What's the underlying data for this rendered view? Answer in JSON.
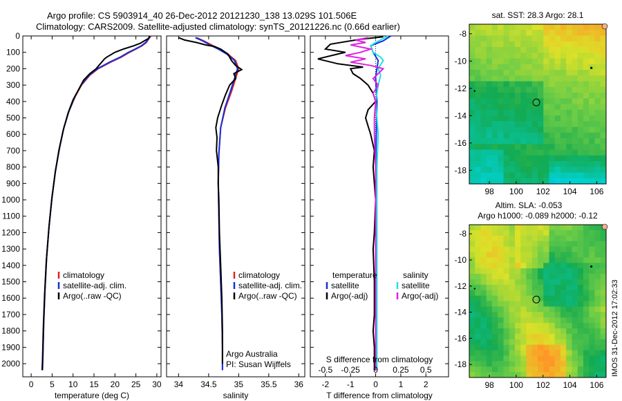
{
  "header": {
    "line1": "Argo profile: CS 5903914_40 26-Dec-2012 20121230_138 13.029S 101.506E",
    "line2": "Climatology: CARS2009. Satellite-adjusted climatology: synTS_20121226.nc (0.66d earlier)"
  },
  "side_stamp": "IMOS 31-Dec-2012 17:02:33",
  "colors": {
    "clim": "#e02020",
    "sat": "#1030e0",
    "argo": "#000000",
    "sal_sat": "#20e0e0",
    "sal_argo": "#e020e0"
  },
  "chart_data": [
    {
      "id": "temperature",
      "type": "line",
      "xlabel": "temperature (deg C)",
      "xlim": [
        -2,
        31
      ],
      "xticks": [
        0,
        5,
        10,
        15,
        20,
        25,
        30
      ],
      "ylim": [
        0,
        2080
      ],
      "yticks": [
        0,
        100,
        200,
        300,
        400,
        500,
        600,
        700,
        800,
        900,
        1000,
        1100,
        1200,
        1300,
        1400,
        1500,
        1600,
        1700,
        1800,
        1900,
        2000
      ],
      "legend": [
        "climatology",
        "satellite-adj. clim.",
        "Argo(..raw -QC)"
      ],
      "series": [
        {
          "name": "climatology",
          "color": "clim",
          "points": [
            [
              28.6,
              0
            ],
            [
              28,
              20
            ],
            [
              27.5,
              40
            ],
            [
              26.5,
              60
            ],
            [
              25,
              80
            ],
            [
              23.5,
              100
            ],
            [
              21.5,
              130
            ],
            [
              19,
              160
            ],
            [
              16,
              200
            ],
            [
              14,
              240
            ],
            [
              12,
              300
            ],
            [
              10.5,
              370
            ],
            [
              9,
              460
            ],
            [
              7.8,
              560
            ],
            [
              6.8,
              680
            ],
            [
              5.8,
              820
            ],
            [
              5,
              980
            ],
            [
              4.3,
              1150
            ],
            [
              3.7,
              1350
            ],
            [
              3.3,
              1550
            ],
            [
              3,
              1750
            ],
            [
              2.8,
              1950
            ],
            [
              2.7,
              2040
            ]
          ]
        },
        {
          "name": "satellite-adj. clim.",
          "color": "sat",
          "points": [
            [
              28.4,
              0
            ],
            [
              28,
              20
            ],
            [
              27.3,
              40
            ],
            [
              26.3,
              60
            ],
            [
              24.8,
              80
            ],
            [
              23.2,
              100
            ],
            [
              21.2,
              130
            ],
            [
              18.7,
              160
            ],
            [
              15.8,
              200
            ],
            [
              13.8,
              240
            ],
            [
              11.9,
              300
            ],
            [
              10.4,
              370
            ],
            [
              9,
              460
            ],
            [
              7.8,
              560
            ],
            [
              6.8,
              680
            ],
            [
              5.8,
              820
            ],
            [
              5,
              980
            ],
            [
              4.3,
              1150
            ],
            [
              3.7,
              1350
            ],
            [
              3.3,
              1550
            ],
            [
              3,
              1750
            ],
            [
              2.8,
              1950
            ],
            [
              2.7,
              2040
            ]
          ]
        },
        {
          "name": "Argo(..raw -QC)",
          "color": "argo",
          "points": [
            [
              28.3,
              0
            ],
            [
              28,
              15
            ],
            [
              27,
              30
            ],
            [
              26,
              45
            ],
            [
              24.5,
              60
            ],
            [
              22,
              80
            ],
            [
              20,
              100
            ],
            [
              18,
              130
            ],
            [
              17.5,
              140
            ],
            [
              16.5,
              170
            ],
            [
              15.5,
              200
            ],
            [
              14,
              230
            ],
            [
              12.5,
              270
            ],
            [
              11.5,
              320
            ],
            [
              10,
              390
            ],
            [
              8.8,
              470
            ],
            [
              7.6,
              580
            ],
            [
              6.6,
              700
            ],
            [
              5.7,
              840
            ],
            [
              4.9,
              1000
            ],
            [
              4.2,
              1180
            ],
            [
              3.6,
              1380
            ],
            [
              3.2,
              1580
            ],
            [
              2.9,
              1780
            ],
            [
              2.7,
              1980
            ],
            [
              2.6,
              2040
            ]
          ]
        }
      ]
    },
    {
      "id": "salinity",
      "type": "line",
      "xlabel": "salinity",
      "xlim": [
        33.8,
        36.1
      ],
      "xticks": [
        34,
        34.5,
        35,
        35.5,
        36
      ],
      "ylim": [
        0,
        2080
      ],
      "legend": [
        "climatology",
        "satellite-adj. clim.",
        "Argo(..raw -QC)"
      ],
      "annotation": [
        "Argo Australia",
        "PI: Susan Wijffels"
      ],
      "series": [
        {
          "name": "climatology",
          "color": "clim",
          "points": [
            [
              34.3,
              10
            ],
            [
              34.42,
              30
            ],
            [
              34.55,
              55
            ],
            [
              34.68,
              80
            ],
            [
              34.82,
              110
            ],
            [
              34.95,
              150
            ],
            [
              35.0,
              200
            ],
            [
              34.95,
              260
            ],
            [
              34.88,
              340
            ],
            [
              34.78,
              440
            ],
            [
              34.7,
              560
            ],
            [
              34.67,
              720
            ],
            [
              34.66,
              900
            ],
            [
              34.67,
              1100
            ],
            [
              34.68,
              1300
            ],
            [
              34.7,
              1500
            ],
            [
              34.72,
              1700
            ],
            [
              34.73,
              1900
            ],
            [
              34.73,
              2040
            ]
          ]
        },
        {
          "name": "satellite-adj. clim.",
          "color": "sat",
          "points": [
            [
              34.28,
              10
            ],
            [
              34.4,
              30
            ],
            [
              34.52,
              55
            ],
            [
              34.66,
              80
            ],
            [
              34.8,
              110
            ],
            [
              34.93,
              150
            ],
            [
              34.98,
              200
            ],
            [
              34.93,
              260
            ],
            [
              34.86,
              340
            ],
            [
              34.77,
              440
            ],
            [
              34.7,
              560
            ],
            [
              34.67,
              720
            ],
            [
              34.66,
              900
            ],
            [
              34.67,
              1100
            ],
            [
              34.68,
              1300
            ],
            [
              34.7,
              1500
            ],
            [
              34.72,
              1700
            ],
            [
              34.73,
              1900
            ],
            [
              34.73,
              2040
            ]
          ]
        },
        {
          "name": "Argo(..raw -QC)",
          "color": "argo",
          "points": [
            [
              34.0,
              10
            ],
            [
              34.1,
              25
            ],
            [
              34.3,
              40
            ],
            [
              34.45,
              55
            ],
            [
              34.6,
              65
            ],
            [
              34.7,
              80
            ],
            [
              34.82,
              110
            ],
            [
              34.88,
              150
            ],
            [
              34.95,
              180
            ],
            [
              35.05,
              205
            ],
            [
              34.92,
              230
            ],
            [
              34.95,
              260
            ],
            [
              34.85,
              300
            ],
            [
              34.78,
              360
            ],
            [
              34.72,
              420
            ],
            [
              34.65,
              500
            ],
            [
              34.62,
              560
            ],
            [
              34.64,
              620
            ],
            [
              34.63,
              700
            ],
            [
              34.66,
              800
            ],
            [
              34.66,
              900
            ],
            [
              34.67,
              1000
            ],
            [
              34.68,
              1200
            ],
            [
              34.7,
              1400
            ],
            [
              34.72,
              1600
            ],
            [
              34.73,
              1800
            ],
            [
              34.73,
              2000
            ]
          ]
        }
      ]
    },
    {
      "id": "difference",
      "type": "line",
      "xlabel": "T difference from climatology",
      "xlabel_top": "S difference from climatology",
      "xlim": [
        -2.6,
        2.9
      ],
      "xticks": [
        -2,
        -1,
        0,
        1,
        2
      ],
      "xticks_top_labels": [
        "-0.5",
        "-0.25",
        "0",
        "0.25",
        "0.5"
      ],
      "ylim": [
        0,
        2080
      ],
      "legend_t_title": "temperature",
      "legend_s_title": "salinity",
      "legend_t": [
        "satellite",
        "Argo(-adj)"
      ],
      "legend_s": [
        "satellite",
        "Argo(-adj)"
      ],
      "series": [
        {
          "name": "T satellite",
          "color": "sat",
          "points": [
            [
              0.6,
              0
            ],
            [
              0.3,
              30
            ],
            [
              -0.2,
              60
            ],
            [
              -0.1,
              100
            ],
            [
              0.1,
              150
            ],
            [
              0,
              250
            ],
            [
              0.05,
              400
            ],
            [
              0,
              800
            ],
            [
              0,
              1200
            ],
            [
              0,
              1600
            ],
            [
              0,
              2040
            ]
          ]
        },
        {
          "name": "T Argo(-adj)",
          "color": "argo",
          "points": [
            [
              0.3,
              5
            ],
            [
              -0.6,
              20
            ],
            [
              -1.8,
              50
            ],
            [
              -2.0,
              80
            ],
            [
              -1.2,
              100
            ],
            [
              -1.5,
              110
            ],
            [
              -2.3,
              140
            ],
            [
              -1.5,
              170
            ],
            [
              -0.5,
              190
            ],
            [
              -1.0,
              200
            ],
            [
              -0.9,
              230
            ],
            [
              -0.6,
              260
            ],
            [
              -0.3,
              300
            ],
            [
              -0.1,
              350
            ],
            [
              0,
              400
            ],
            [
              -0.3,
              450
            ],
            [
              -0.4,
              500
            ],
            [
              -0.3,
              550
            ],
            [
              -0.2,
              600
            ],
            [
              -0.05,
              700
            ],
            [
              -0.1,
              800
            ],
            [
              -0.05,
              900
            ],
            [
              0,
              1000
            ],
            [
              -0.05,
              1200
            ],
            [
              -0.1,
              1300
            ],
            [
              -0.05,
              1500
            ],
            [
              -0.05,
              1700
            ],
            [
              -0.1,
              1800
            ],
            [
              -0.05,
              1900
            ],
            [
              -0.05,
              2040
            ]
          ]
        },
        {
          "name": "S satellite",
          "color": "sal_sat",
          "points": [
            [
              0.5,
              0
            ],
            [
              0,
              40
            ],
            [
              -0.2,
              60
            ],
            [
              -0.1,
              100
            ],
            [
              0.2,
              130
            ],
            [
              0.3,
              150
            ],
            [
              0.1,
              200
            ],
            [
              0.2,
              240
            ],
            [
              0.1,
              300
            ],
            [
              0,
              400
            ],
            [
              0.1,
              600
            ],
            [
              0.05,
              800
            ],
            [
              0.05,
              1000
            ],
            [
              0.05,
              1200
            ],
            [
              0.05,
              1500
            ],
            [
              0.05,
              1800
            ],
            [
              0.05,
              2040
            ]
          ]
        },
        {
          "name": "S Argo(-adj)",
          "color": "sal_argo",
          "points": [
            [
              -0.3,
              10
            ],
            [
              -0.8,
              25
            ],
            [
              -0.4,
              40
            ],
            [
              -1.0,
              55
            ],
            [
              -0.2,
              80
            ],
            [
              -0.6,
              100
            ],
            [
              -1.2,
              120
            ],
            [
              -0.4,
              140
            ],
            [
              -1.0,
              160
            ],
            [
              -0.2,
              180
            ],
            [
              0.3,
              200
            ],
            [
              0.1,
              230
            ],
            [
              -0.1,
              260
            ],
            [
              0.1,
              300
            ],
            [
              -0.1,
              350
            ],
            [
              0,
              400
            ],
            [
              -0.05,
              500
            ],
            [
              -0.05,
              600
            ],
            [
              0,
              800
            ],
            [
              0,
              1000
            ],
            [
              0,
              1200
            ],
            [
              0,
              1500
            ],
            [
              0,
              1800
            ],
            [
              0,
              2040
            ]
          ]
        }
      ]
    },
    {
      "id": "sst_map",
      "type": "heatmap",
      "title": "sat. SST: 28.3 Argo: 28.1",
      "xticks": [
        98,
        100,
        102,
        104,
        106
      ],
      "yticks": [
        -8,
        -10,
        -12,
        -14,
        -16,
        -18
      ],
      "xlim": [
        96.5,
        106.7
      ],
      "ylim": [
        -19,
        -7.3
      ],
      "argo_position": [
        101.5,
        -13.03
      ]
    },
    {
      "id": "sla_map",
      "type": "heatmap",
      "title": "Altim. SLA: -0.053",
      "subtitle": "Argo h1000: -0.089 h2000: -0.12",
      "xticks": [
        98,
        100,
        102,
        104,
        106
      ],
      "yticks": [
        -8,
        -10,
        -12,
        -14,
        -16,
        -18
      ],
      "xlim": [
        96.5,
        106.7
      ],
      "ylim": [
        -19,
        -7.3
      ],
      "argo_position": [
        101.5,
        -13.03
      ]
    }
  ]
}
